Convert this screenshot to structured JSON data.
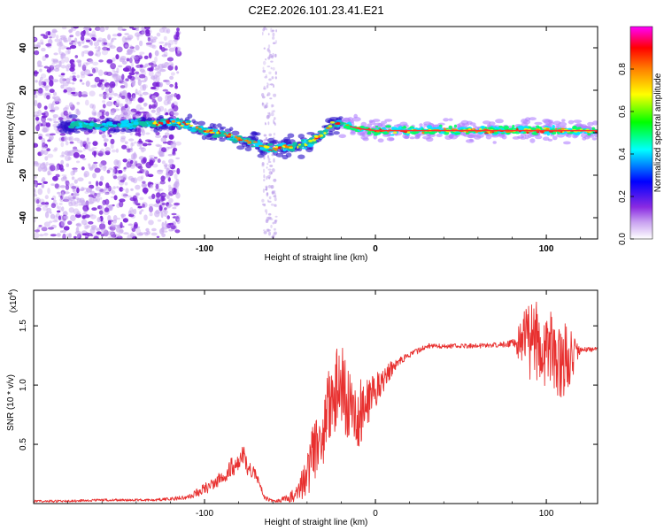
{
  "chart_data": [
    {
      "type": "heatmap",
      "title": "C2E2.2026.101.23.41.E21",
      "xlabel": "Height of straight line (km)",
      "ylabel": "Frequency (Hz)",
      "xlim": [
        -200,
        130
      ],
      "ylim": [
        -50,
        50
      ],
      "xticks": [
        -100,
        0,
        100
      ],
      "xtick_labels": [
        "-100",
        "0",
        "100"
      ],
      "yticks": [
        -40,
        -20,
        0,
        20,
        40
      ],
      "ytick_labels": [
        "-40",
        "-20",
        "0",
        "20",
        "40"
      ],
      "colorbar": {
        "label": "Normalized spectral amplitude",
        "range": [
          0.0,
          1.0
        ],
        "ticks": [
          0.0,
          0.2,
          0.4,
          0.6,
          0.8
        ],
        "tick_labels": [
          "0.0",
          "0.2",
          "0.4",
          "0.6",
          "0.8"
        ],
        "colors": [
          "#ffffff",
          "#8a2be2",
          "#0000ff",
          "#00ffff",
          "#00ff00",
          "#ffff00",
          "#ff8000",
          "#ff0000",
          "#ff00ff"
        ]
      },
      "ridge": {
        "x": [
          -180,
          -160,
          -140,
          -120,
          -110,
          -100,
          -90,
          -80,
          -70,
          -60,
          -55,
          -50,
          -40,
          -30,
          -25,
          -20,
          -10,
          0,
          20,
          50,
          80,
          100,
          110,
          130
        ],
        "y": [
          4,
          3,
          4,
          5,
          4,
          1,
          0,
          -3,
          -5,
          -8,
          -6,
          -7,
          -5,
          0,
          5,
          4,
          2,
          1,
          1,
          1,
          1,
          1,
          1,
          1
        ]
      }
    },
    {
      "type": "line",
      "xlabel": "Height of straight line (km)",
      "ylabel": "SNR (10 * v/v)",
      "y_multiplier": "(x10",
      "y_multiplier_exp": "4",
      "xlim": [
        -200,
        130
      ],
      "ylim": [
        0,
        1.8
      ],
      "xticks": [
        -100,
        0,
        100
      ],
      "xtick_labels": [
        "-100",
        "0",
        "100"
      ],
      "yticks": [
        0.5,
        1.0,
        1.5
      ],
      "ytick_labels": [
        "0.5",
        "1.0",
        "1.5"
      ],
      "series": [
        {
          "name": "SNR",
          "color": "#e8302f",
          "x": [
            -200,
            -180,
            -160,
            -130,
            -110,
            -100,
            -90,
            -85,
            -80,
            -77,
            -75,
            -70,
            -65,
            -60,
            -55,
            -50,
            -45,
            -40,
            -35,
            -30,
            -25,
            -20,
            -18,
            -15,
            -12,
            -10,
            -5,
            0,
            5,
            10,
            15,
            20,
            30,
            40,
            50,
            60,
            70,
            80,
            85,
            90,
            95,
            100,
            105,
            110,
            115,
            120,
            125,
            130
          ],
          "values": [
            0.02,
            0.02,
            0.03,
            0.03,
            0.05,
            0.12,
            0.22,
            0.3,
            0.35,
            0.42,
            0.3,
            0.25,
            0.05,
            0.02,
            0.03,
            0.05,
            0.1,
            0.25,
            0.5,
            0.7,
            0.9,
            1.05,
            0.9,
            0.85,
            0.8,
            0.75,
            0.85,
            0.95,
            1.05,
            1.15,
            1.2,
            1.25,
            1.33,
            1.33,
            1.33,
            1.33,
            1.34,
            1.35,
            1.35,
            1.4,
            1.35,
            1.3,
            1.25,
            1.2,
            1.25,
            1.3,
            1.3,
            1.3
          ],
          "noise_amplitude": [
            0.01,
            0.01,
            0.01,
            0.01,
            0.02,
            0.05,
            0.06,
            0.08,
            0.08,
            0.08,
            0.06,
            0.05,
            0.02,
            0.01,
            0.02,
            0.04,
            0.08,
            0.2,
            0.3,
            0.35,
            0.35,
            0.35,
            0.35,
            0.3,
            0.3,
            0.3,
            0.2,
            0.15,
            0.1,
            0.06,
            0.04,
            0.03,
            0.02,
            0.02,
            0.02,
            0.02,
            0.02,
            0.03,
            0.2,
            0.35,
            0.35,
            0.35,
            0.35,
            0.35,
            0.2,
            0.02,
            0.02,
            0.02
          ]
        }
      ]
    }
  ]
}
